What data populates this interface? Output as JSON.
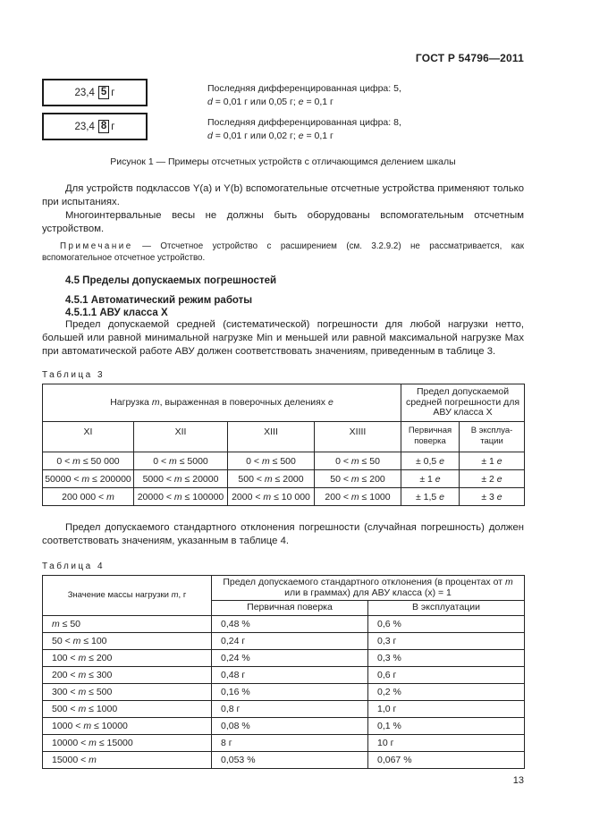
{
  "header": {
    "code": "ГОСТ Р 54796—2011"
  },
  "figure": {
    "displays": [
      {
        "reading": "23,4",
        "boxed_digit": "5",
        "unit": "г",
        "desc_line1": "Последняя дифференцированная цифра: 5,",
        "desc_line2": "*d* = 0,01 г или 0,05 г; *e* = 0,1 г"
      },
      {
        "reading": "23,4",
        "boxed_digit": "8",
        "unit": "г",
        "desc_line1": "Последняя дифференцированная цифра: 8,",
        "desc_line2": "*d* = 0,01 г или 0,02 г; *e* = 0,1 г"
      }
    ],
    "caption": "Рисунок 1 — Примеры отсчетных устройств с отличающимся делением шкалы"
  },
  "paragraphs": {
    "p1": "Для устройств подклассов Y(a) и Y(b) вспомогательные отсчетные устройства применяют только при испытаниях.",
    "p2": "Многоинтервальные весы не должны быть оборудованы вспомогательным отсчетным устройством.",
    "p3": "Предел допускаемой средней (систематической) погрешности для любой нагрузки нетто, большей или равной минимальной нагрузке Min и меньшей или равной максимальной нагрузке Max при автоматической работе АВУ должен соответствовать значениям, приведенным в таблице 3.",
    "p4": "Предел допускаемого стандартного отклонения погрешности (случайная погрешность) должен соответствовать значениям, указанным в таблице 4."
  },
  "note": {
    "label": "Примечание",
    "dash": " — ",
    "text": "Отсчетное устройство с расширением (см. 3.2.9.2) не рассматривается, как вспомогательное отсчетное устройство."
  },
  "headings": {
    "h45": "4.5 Пределы допускаемых погрешностей",
    "h451": "4.5.1 Автоматический режим работы",
    "h4511": "4.5.1.1 АВУ класса X"
  },
  "table3": {
    "caption": "Таблица 3",
    "header": {
      "load": "Нагрузка *m*, выраженная в поверочных делениях *e*",
      "limit": "Предел допускаемой средней погрешности для АВУ класса X",
      "classes": [
        "XI",
        "XII",
        "XIII",
        "XIIII"
      ],
      "verification": "Первичная поверка",
      "in_service": "В эксплуа-|тации"
    },
    "rows": [
      [
        "0 < *m* ≤ 50 000",
        "0 < *m* ≤ 5000",
        "0 < *m* ≤ 500",
        "0 < *m* ≤ 50",
        "± 0,5 *e*",
        "± 1 *e*"
      ],
      [
        "50000 < *m* ≤ 200000",
        "5000 < *m* ≤ 20000",
        "500 < *m* ≤ 2000",
        "50 < *m* ≤ 200",
        "± 1 *e*",
        "± 2 *e*"
      ],
      [
        "200 000 < *m*",
        "20000 < *m* ≤ 100000",
        "2000 < *m* ≤ 10 000",
        "200 < *m* ≤ 1000",
        "± 1,5 *e*",
        "± 3 *e*"
      ]
    ]
  },
  "table4": {
    "caption": "Таблица 4",
    "header": {
      "mass": "Значение массы нагрузки *m*, г",
      "limit": "Предел допускаемого стандартного отклонения (в процентах от *m* или в граммах) для АВУ класса (x) = 1",
      "verification": "Первичная поверка",
      "in_service": "В эксплуатации"
    },
    "rows": [
      [
        "*m* ≤ 50",
        "0,48 %",
        "0,6 %"
      ],
      [
        "50 < *m* ≤ 100",
        "0,24 г",
        "0,3 г"
      ],
      [
        "100 < *m* ≤ 200",
        "0,24 %",
        "0,3 %"
      ],
      [
        "200 < *m* ≤ 300",
        "0,48 г",
        "0,6 г"
      ],
      [
        "300 < *m* ≤ 500",
        "0,16 %",
        "0,2 %"
      ],
      [
        "500 < *m* ≤ 1000",
        "0,8 г",
        "1,0 г"
      ],
      [
        "1000 < *m* ≤ 10000",
        "0,08 %",
        "0,1 %"
      ],
      [
        "10000 < *m* ≤ 15000",
        "8 г",
        "10 г"
      ],
      [
        "15000 < *m*",
        "0,053 %",
        "0,067 %"
      ]
    ]
  },
  "page_number": "13"
}
